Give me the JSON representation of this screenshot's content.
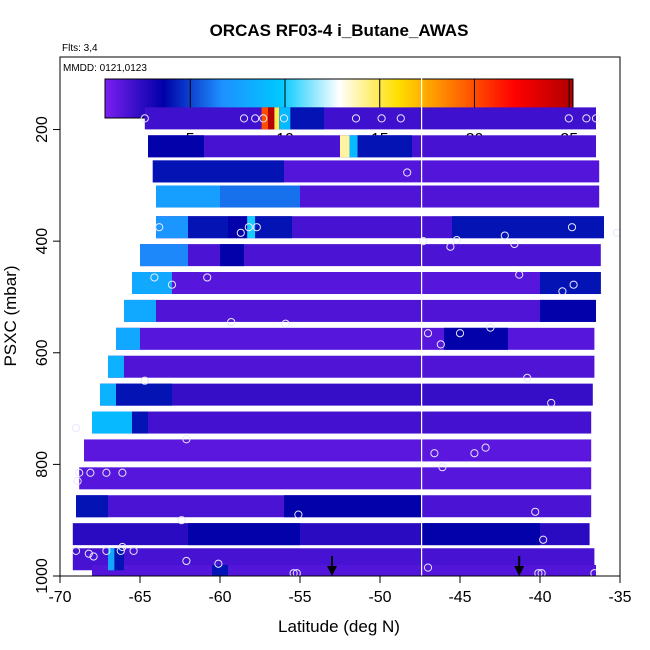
{
  "chart_data": {
    "type": "heatmap",
    "title": "ORCAS RF03-4 i_Butane_AWAS",
    "flights_label": "Flts: 3,4",
    "dates_label": "MMDD: 0121,0123",
    "xlabel": "Latitude (deg N)",
    "ylabel": "PSXC (mbar)",
    "xlim": [
      -70,
      -35
    ],
    "ylim": [
      1000,
      70
    ],
    "x_ticks": [
      -70,
      -65,
      -60,
      -55,
      -50,
      -45,
      -40,
      -35
    ],
    "y_ticks": [
      200,
      400,
      600,
      800,
      1000
    ],
    "colorbar": {
      "range": [
        0.5,
        25.2
      ],
      "ticks": [
        5,
        10,
        15,
        20,
        25
      ],
      "stops": [
        "#7b1ff0",
        "#0000a8",
        "#1e90ff",
        "#00c8ff",
        "#ffffff",
        "#ffe000",
        "#ff7000",
        "#ff0000",
        "#b00000"
      ]
    },
    "divider_lat": -47.4,
    "arrows_lat": [
      -53,
      -41.3
    ],
    "bands": [
      {
        "p": 180,
        "lat_start": -64.7,
        "lat_end": -36.5,
        "value": 2.0
      },
      {
        "p": 230,
        "lat_start": -64.5,
        "lat_end": -36.5,
        "value": 1.8
      },
      {
        "p": 275,
        "lat_start": -64.2,
        "lat_end": -36.3,
        "value": 1.5
      },
      {
        "p": 320,
        "lat_start": -64.0,
        "lat_end": -36.3,
        "value": 1.6
      },
      {
        "p": 375,
        "lat_start": -64.0,
        "lat_end": -36.0,
        "value": 1.8
      },
      {
        "p": 425,
        "lat_start": -65.0,
        "lat_end": -36.2,
        "value": 1.7
      },
      {
        "p": 475,
        "lat_start": -65.5,
        "lat_end": -36.2,
        "value": 1.4
      },
      {
        "p": 525,
        "lat_start": -66.0,
        "lat_end": -36.5,
        "value": 1.6
      },
      {
        "p": 575,
        "lat_start": -66.5,
        "lat_end": -36.6,
        "value": 1.4
      },
      {
        "p": 625,
        "lat_start": -67.0,
        "lat_end": -36.6,
        "value": 1.6
      },
      {
        "p": 675,
        "lat_start": -67.5,
        "lat_end": -36.7,
        "value": 2.2
      },
      {
        "p": 725,
        "lat_start": -68.0,
        "lat_end": -36.8,
        "value": 1.9
      },
      {
        "p": 775,
        "lat_start": -68.5,
        "lat_end": -36.8,
        "value": 1.3
      },
      {
        "p": 825,
        "lat_start": -68.8,
        "lat_end": -36.8,
        "value": 1.4
      },
      {
        "p": 875,
        "lat_start": -69.0,
        "lat_end": -36.8,
        "value": 1.7
      },
      {
        "p": 925,
        "lat_start": -69.2,
        "lat_end": -36.9,
        "value": 2.5
      },
      {
        "p": 970,
        "lat_start": -69.2,
        "lat_end": -36.6,
        "value": 1.8
      },
      {
        "p": 1000,
        "lat_start": -68.0,
        "lat_end": -36.5,
        "value": 1.5
      }
    ],
    "segments": [
      {
        "p": 180,
        "lat_start": -57.4,
        "lat_end": -57.0,
        "value": 20.0
      },
      {
        "p": 180,
        "lat_start": -57.0,
        "lat_end": -56.6,
        "value": 25.0
      },
      {
        "p": 180,
        "lat_start": -56.6,
        "lat_end": -56.3,
        "value": 15.0
      },
      {
        "p": 180,
        "lat_start": -56.3,
        "lat_end": -55.6,
        "value": 9.0
      },
      {
        "p": 180,
        "lat_start": -55.6,
        "lat_end": -53.5,
        "value": 4.0
      },
      {
        "p": 230,
        "lat_start": -64.5,
        "lat_end": -61.0,
        "value": 3.5
      },
      {
        "p": 230,
        "lat_start": -52.5,
        "lat_end": -51.9,
        "value": 14.0
      },
      {
        "p": 230,
        "lat_start": -51.9,
        "lat_end": -51.4,
        "value": 9.0
      },
      {
        "p": 230,
        "lat_start": -51.4,
        "lat_end": -48.0,
        "value": 4.0
      },
      {
        "p": 275,
        "lat_start": -64.2,
        "lat_end": -56.0,
        "value": 4.0
      },
      {
        "p": 320,
        "lat_start": -64.0,
        "lat_end": -60.0,
        "value": 7.5
      },
      {
        "p": 320,
        "lat_start": -60.0,
        "lat_end": -55.0,
        "value": 6.0
      },
      {
        "p": 375,
        "lat_start": -64.0,
        "lat_end": -62.0,
        "value": 7.0
      },
      {
        "p": 375,
        "lat_start": -62.0,
        "lat_end": -59.5,
        "value": 4.0
      },
      {
        "p": 375,
        "lat_start": -59.5,
        "lat_end": -58.3,
        "value": 3.5
      },
      {
        "p": 375,
        "lat_start": -58.3,
        "lat_end": -57.8,
        "value": 10.0
      },
      {
        "p": 375,
        "lat_start": -57.8,
        "lat_end": -55.5,
        "value": 4.0
      },
      {
        "p": 375,
        "lat_start": -45.5,
        "lat_end": -36.0,
        "value": 4.0
      },
      {
        "p": 425,
        "lat_start": -65.0,
        "lat_end": -62.0,
        "value": 6.5
      },
      {
        "p": 425,
        "lat_start": -60.0,
        "lat_end": -58.5,
        "value": 3.5
      },
      {
        "p": 475,
        "lat_start": -65.5,
        "lat_end": -63.0,
        "value": 8.0
      },
      {
        "p": 475,
        "lat_start": -40.0,
        "lat_end": -36.2,
        "value": 4.0
      },
      {
        "p": 525,
        "lat_start": -66.0,
        "lat_end": -64.0,
        "value": 8.0
      },
      {
        "p": 525,
        "lat_start": -40.0,
        "lat_end": -36.5,
        "value": 3.5
      },
      {
        "p": 575,
        "lat_start": -66.5,
        "lat_end": -65.0,
        "value": 8.0
      },
      {
        "p": 575,
        "lat_start": -46.0,
        "lat_end": -42.0,
        "value": 3.5
      },
      {
        "p": 625,
        "lat_start": -67.0,
        "lat_end": -66.0,
        "value": 8.5
      },
      {
        "p": 675,
        "lat_start": -67.5,
        "lat_end": -66.5,
        "value": 8.5
      },
      {
        "p": 675,
        "lat_start": -66.5,
        "lat_end": -63.0,
        "value": 4.0
      },
      {
        "p": 725,
        "lat_start": -68.0,
        "lat_end": -65.5,
        "value": 9.0
      },
      {
        "p": 725,
        "lat_start": -65.5,
        "lat_end": -64.5,
        "value": 4.0
      },
      {
        "p": 875,
        "lat_start": -69.0,
        "lat_end": -67.0,
        "value": 4.0
      },
      {
        "p": 875,
        "lat_start": -56.0,
        "lat_end": -47.4,
        "value": 3.5
      },
      {
        "p": 925,
        "lat_start": -62.0,
        "lat_end": -55.0,
        "value": 3.5
      },
      {
        "p": 925,
        "lat_start": -47.4,
        "lat_end": -40.0,
        "value": 3.5
      },
      {
        "p": 970,
        "lat_start": -67.0,
        "lat_end": -66.6,
        "value": 8.0
      },
      {
        "p": 970,
        "lat_start": -66.6,
        "lat_end": -66.0,
        "value": 4.0
      },
      {
        "p": 1000,
        "lat_start": -60.5,
        "lat_end": -59.5,
        "value": 4.0
      }
    ],
    "points": [
      {
        "lat": -64.7,
        "p": 180
      },
      {
        "lat": -58.5,
        "p": 180
      },
      {
        "lat": -57.8,
        "p": 180
      },
      {
        "lat": -57.3,
        "p": 180
      },
      {
        "lat": -56.0,
        "p": 180
      },
      {
        "lat": -51.5,
        "p": 180
      },
      {
        "lat": -49.9,
        "p": 180
      },
      {
        "lat": -48.7,
        "p": 180
      },
      {
        "lat": -38.2,
        "p": 180
      },
      {
        "lat": -37.1,
        "p": 180
      },
      {
        "lat": -36.5,
        "p": 180
      },
      {
        "lat": -48.3,
        "p": 277
      },
      {
        "lat": -63.8,
        "p": 375
      },
      {
        "lat": -58.7,
        "p": 385
      },
      {
        "lat": -58.2,
        "p": 375
      },
      {
        "lat": -57.7,
        "p": 375
      },
      {
        "lat": -47.3,
        "p": 400
      },
      {
        "lat": -45.6,
        "p": 410
      },
      {
        "lat": -45.2,
        "p": 398
      },
      {
        "lat": -42.2,
        "p": 390
      },
      {
        "lat": -41.6,
        "p": 405
      },
      {
        "lat": -38.0,
        "p": 375
      },
      {
        "lat": -35.2,
        "p": 385
      },
      {
        "lat": -64.1,
        "p": 465
      },
      {
        "lat": -63.0,
        "p": 478
      },
      {
        "lat": -60.8,
        "p": 465
      },
      {
        "lat": -41.3,
        "p": 460
      },
      {
        "lat": -38.6,
        "p": 490
      },
      {
        "lat": -37.9,
        "p": 478
      },
      {
        "lat": -59.3,
        "p": 545
      },
      {
        "lat": -55.9,
        "p": 548
      },
      {
        "lat": -47.0,
        "p": 565
      },
      {
        "lat": -46.2,
        "p": 585
      },
      {
        "lat": -45.0,
        "p": 565
      },
      {
        "lat": -43.1,
        "p": 555
      },
      {
        "lat": -64.7,
        "p": 650
      },
      {
        "lat": -40.8,
        "p": 645
      },
      {
        "lat": -39.3,
        "p": 690
      },
      {
        "lat": -69.0,
        "p": 735
      },
      {
        "lat": -62.1,
        "p": 755
      },
      {
        "lat": -46.6,
        "p": 780
      },
      {
        "lat": -46.1,
        "p": 805
      },
      {
        "lat": -44.1,
        "p": 780
      },
      {
        "lat": -43.4,
        "p": 770
      },
      {
        "lat": -68.8,
        "p": 815
      },
      {
        "lat": -68.9,
        "p": 830
      },
      {
        "lat": -68.1,
        "p": 815
      },
      {
        "lat": -67.1,
        "p": 815
      },
      {
        "lat": -66.1,
        "p": 815
      },
      {
        "lat": -62.4,
        "p": 900
      },
      {
        "lat": -55.1,
        "p": 890
      },
      {
        "lat": -40.3,
        "p": 885
      },
      {
        "lat": -39.8,
        "p": 935
      },
      {
        "lat": -69.0,
        "p": 955
      },
      {
        "lat": -68.2,
        "p": 960
      },
      {
        "lat": -67.9,
        "p": 965
      },
      {
        "lat": -67.1,
        "p": 955
      },
      {
        "lat": -66.2,
        "p": 955
      },
      {
        "lat": -65.4,
        "p": 955
      },
      {
        "lat": -66.1,
        "p": 948
      },
      {
        "lat": -62.1,
        "p": 973
      },
      {
        "lat": -60.1,
        "p": 978
      },
      {
        "lat": -55.4,
        "p": 995
      },
      {
        "lat": -55.2,
        "p": 995
      },
      {
        "lat": -47.0,
        "p": 985
      },
      {
        "lat": -40.1,
        "p": 995
      },
      {
        "lat": -39.9,
        "p": 995
      },
      {
        "lat": -36.6,
        "p": 995
      }
    ]
  }
}
